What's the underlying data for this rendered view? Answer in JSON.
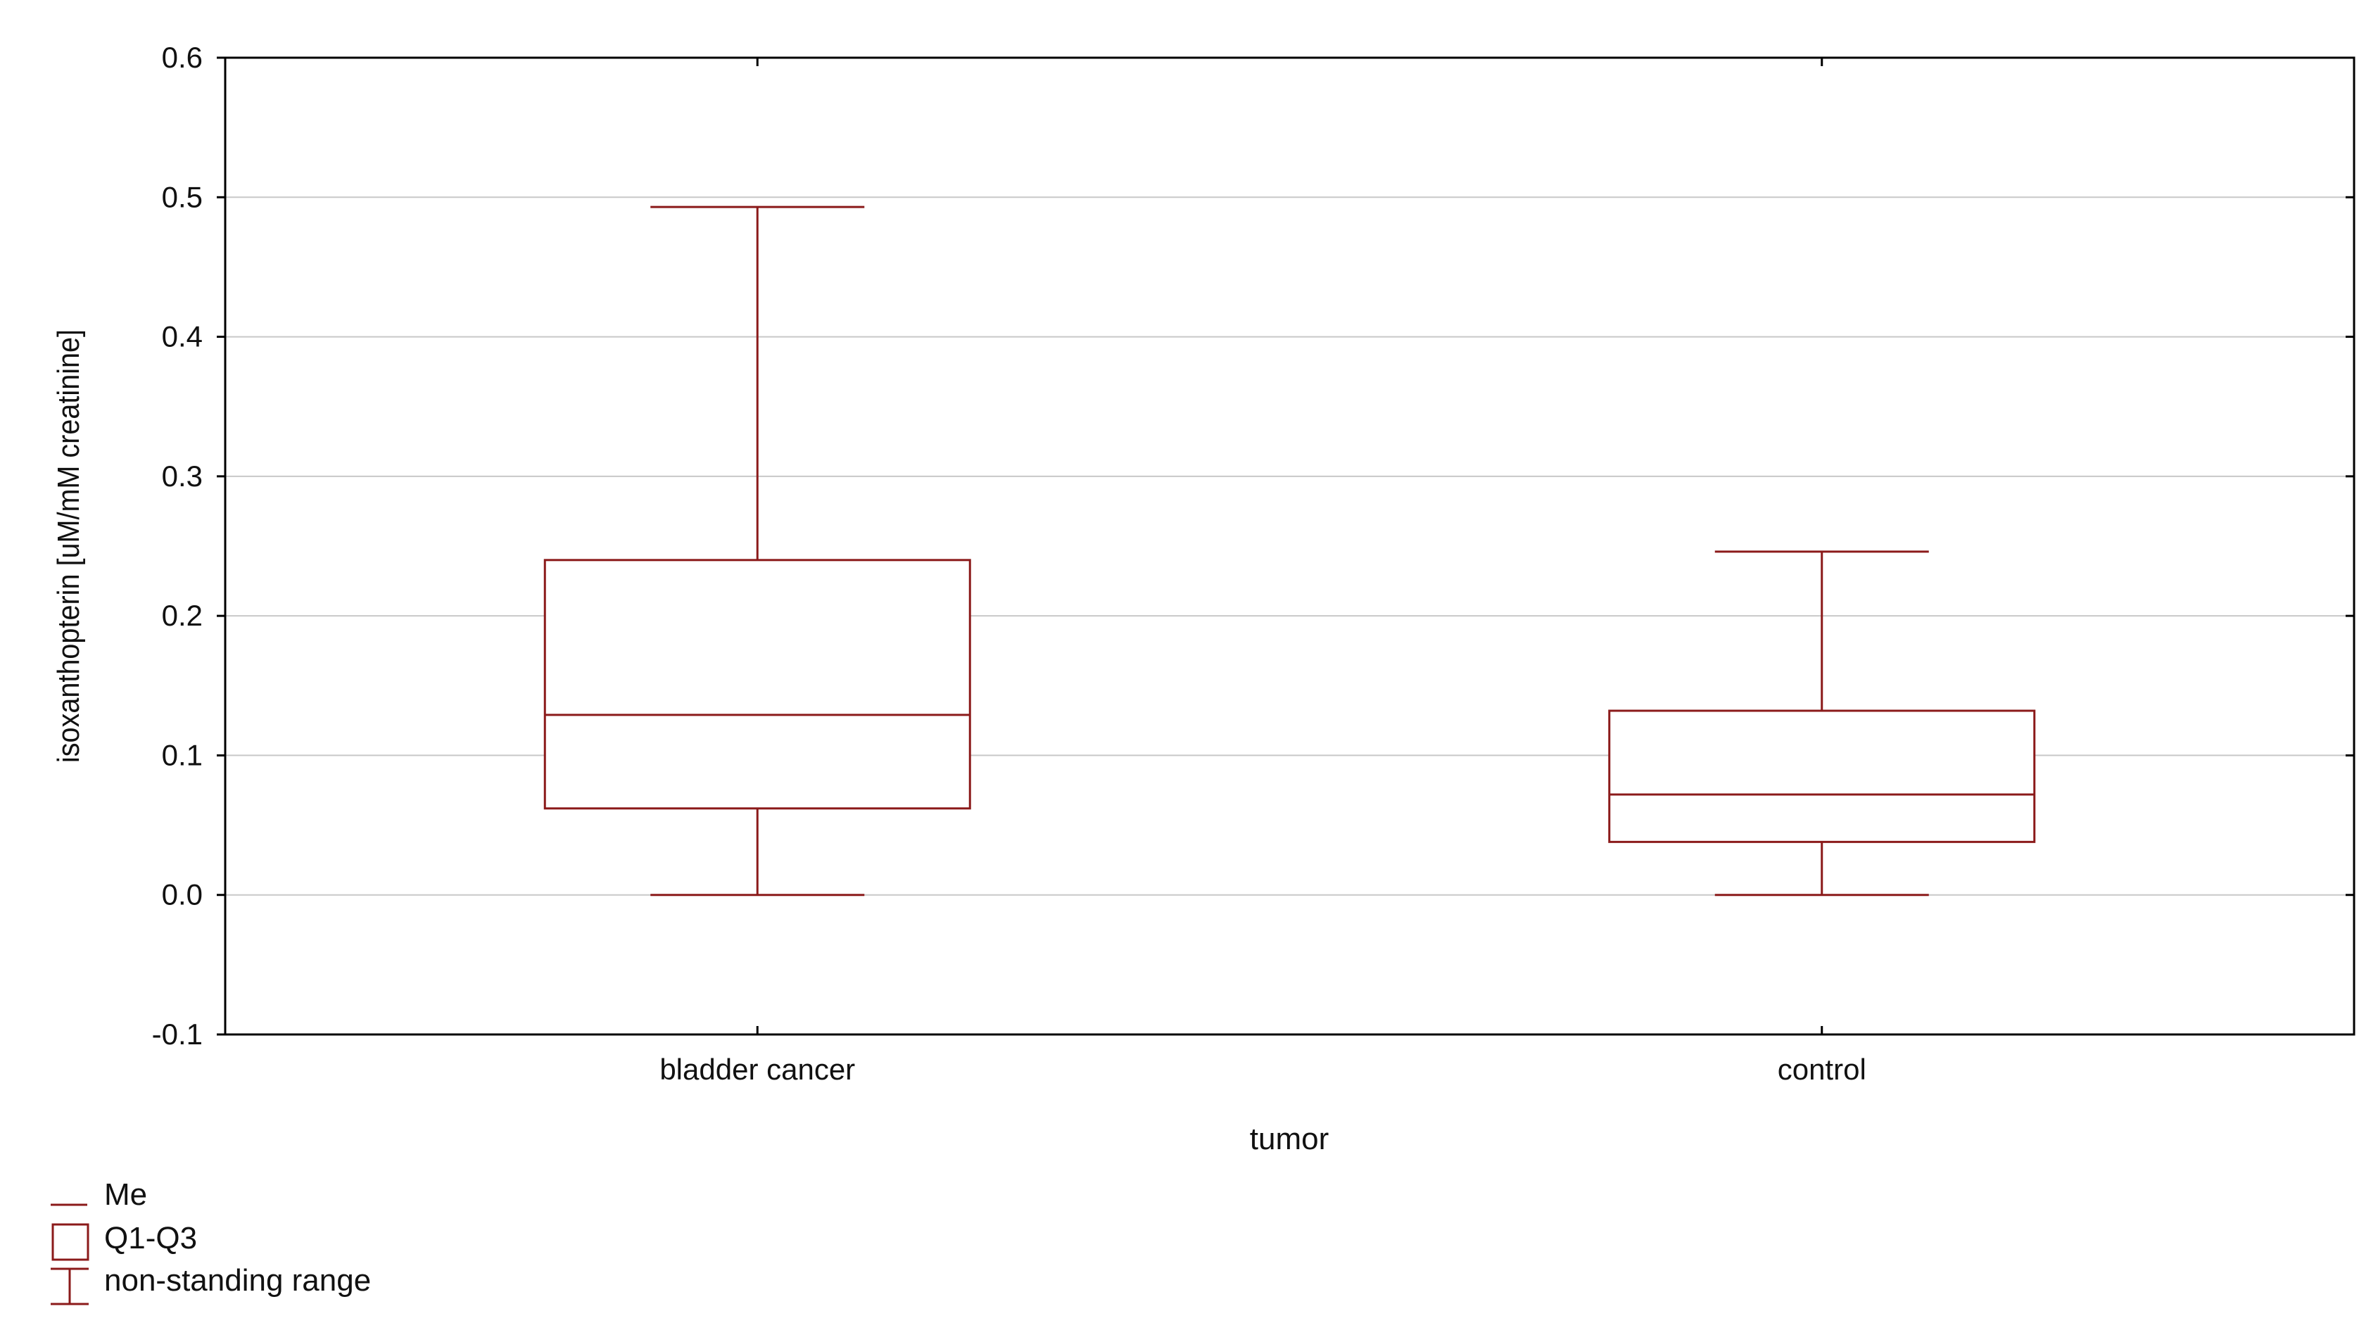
{
  "chart_data": {
    "type": "box",
    "title": "",
    "xlabel": "tumor",
    "ylabel": "isoxanthopterin [uM/mM creatinine]",
    "ylim": [
      -0.1,
      0.6
    ],
    "yticks": [
      "-0.1",
      "0.0",
      "0.1",
      "0.2",
      "0.3",
      "0.4",
      "0.5",
      "0.6"
    ],
    "grid": true,
    "legend_position": "bottom-left",
    "colors": {
      "box": "#8b1a1a",
      "grid": "#c8c8c8",
      "frame": "#000000"
    },
    "categories": [
      "bladder cancer",
      "control"
    ],
    "boxes": [
      {
        "category": "bladder cancer",
        "min": 0.0,
        "q1": 0.062,
        "median": 0.129,
        "q3": 0.24,
        "max": 0.493
      },
      {
        "category": "control",
        "min": 0.0,
        "q1": 0.038,
        "median": 0.072,
        "q3": 0.132,
        "max": 0.246
      }
    ],
    "legend": [
      {
        "symbol": "median-line",
        "label": "Me"
      },
      {
        "symbol": "box",
        "label": "Q1-Q3"
      },
      {
        "symbol": "whisker",
        "label": "non-standing range"
      }
    ]
  }
}
